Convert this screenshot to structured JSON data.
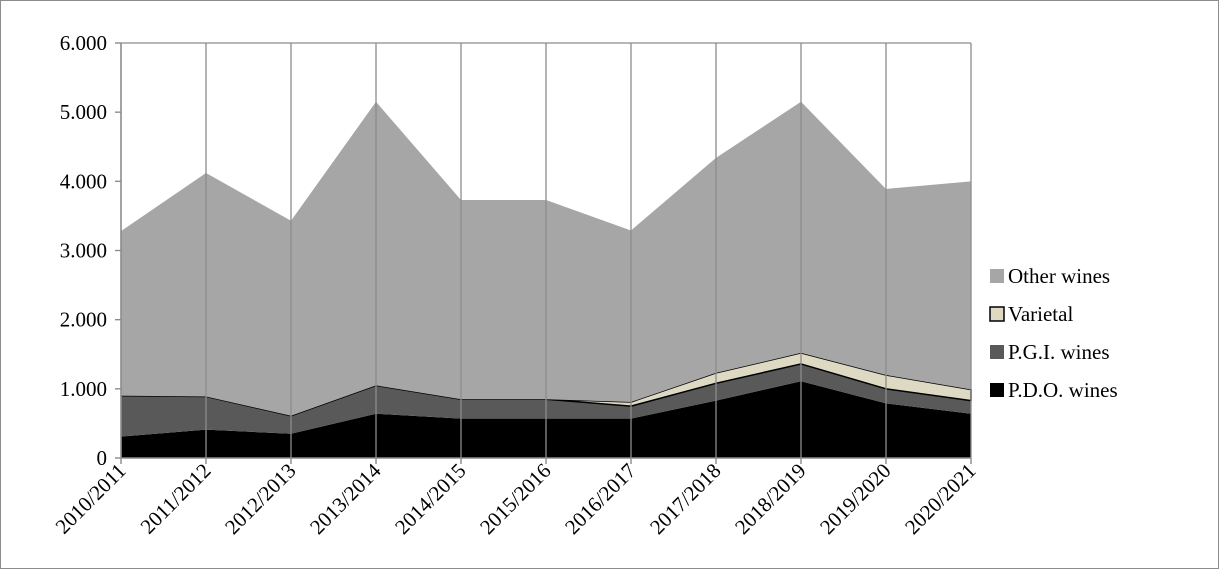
{
  "chart_data": {
    "type": "area",
    "stacked": true,
    "title": "",
    "xlabel": "",
    "ylabel": "",
    "categories": [
      "2010/2011",
      "2011/2012",
      "2012/2013",
      "2013/2014",
      "2014/2015",
      "2015/2016",
      "2016/2017",
      "2017/2018",
      "2018/2019",
      "2019/2020",
      "2020/2021"
    ],
    "y_tick_labels": [
      "0",
      "1.000",
      "2.000",
      "3.000",
      "4.000",
      "5.000",
      "6.000"
    ],
    "ylim": [
      0,
      6000
    ],
    "grid": "vertical",
    "legend_position": "right",
    "series": [
      {
        "name": "P.D.O. wines",
        "color": "#000000",
        "values": [
          310,
          410,
          350,
          640,
          570,
          570,
          570,
          830,
          1110,
          790,
          640
        ]
      },
      {
        "name": "P.G.I. wines",
        "color": "#595959",
        "values": [
          590,
          480,
          260,
          410,
          280,
          280,
          180,
          250,
          250,
          210,
          190
        ]
      },
      {
        "name": "Varietal",
        "color": "#ddd9c3",
        "values": [
          0,
          0,
          0,
          0,
          0,
          0,
          60,
          150,
          160,
          200,
          160
        ]
      },
      {
        "name": "Other wines",
        "color": "#a6a6a6",
        "values": [
          2380,
          3230,
          2820,
          4100,
          2880,
          2880,
          2480,
          3110,
          3630,
          2690,
          3010
        ]
      }
    ]
  }
}
